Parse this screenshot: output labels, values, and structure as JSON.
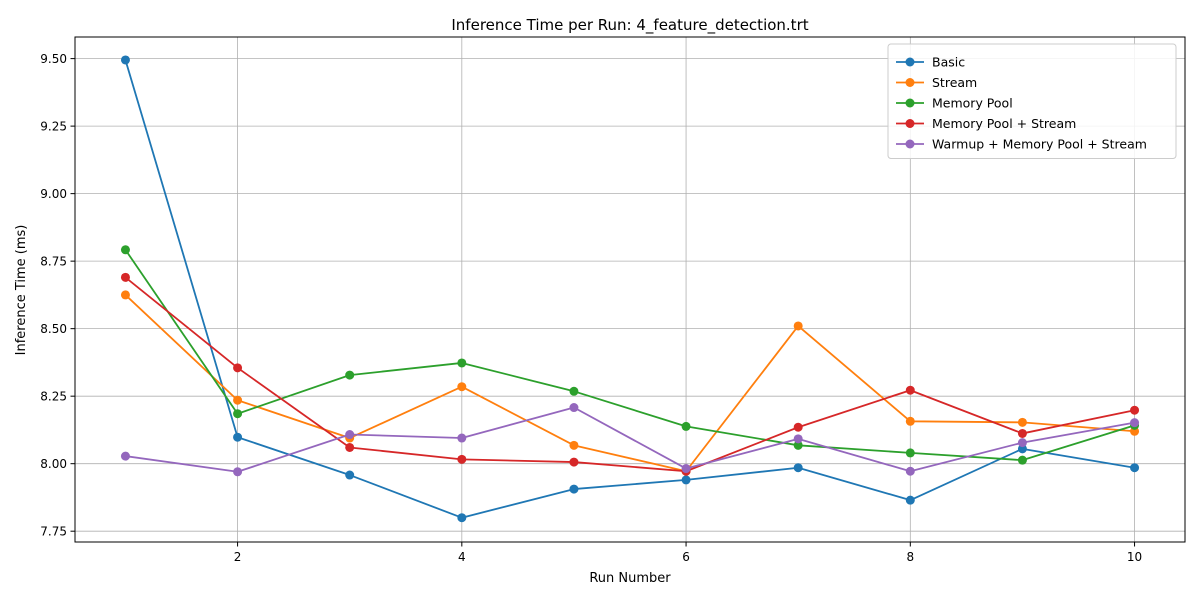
{
  "chart_data": {
    "type": "line",
    "title": "Inference Time per Run: 4_feature_detection.trt",
    "xlabel": "Run Number",
    "ylabel": "Inference Time (ms)",
    "x": [
      1,
      2,
      3,
      4,
      5,
      6,
      7,
      8,
      9,
      10
    ],
    "xlim": [
      0.55,
      10.45
    ],
    "ylim": [
      7.71,
      9.58
    ],
    "xticks": [
      2,
      4,
      6,
      8,
      10
    ],
    "xtick_labels": [
      "2",
      "4",
      "6",
      "8",
      "10"
    ],
    "yticks": [
      7.75,
      8.0,
      8.25,
      8.5,
      8.75,
      9.0,
      9.25,
      9.5
    ],
    "ytick_labels": [
      "7.75",
      "8.00",
      "8.25",
      "8.50",
      "8.75",
      "9.00",
      "9.25",
      "9.50"
    ],
    "grid": true,
    "legend_position": "top-right",
    "series": [
      {
        "name": "Basic",
        "color": "#1f77b4",
        "values": [
          9.495,
          8.098,
          7.958,
          7.8,
          7.906,
          7.94,
          7.985,
          7.865,
          8.055,
          7.985
        ]
      },
      {
        "name": "Stream",
        "color": "#ff7f0e",
        "values": [
          8.625,
          8.235,
          8.095,
          8.285,
          8.068,
          7.972,
          8.51,
          8.157,
          8.153,
          8.12
        ]
      },
      {
        "name": "Memory Pool",
        "color": "#2ca02c",
        "values": [
          8.792,
          8.185,
          8.328,
          8.373,
          8.268,
          8.138,
          8.068,
          8.04,
          8.013,
          8.142
        ]
      },
      {
        "name": "Memory Pool + Stream",
        "color": "#d62728",
        "values": [
          8.69,
          8.355,
          8.06,
          8.016,
          8.006,
          7.972,
          8.135,
          8.272,
          8.112,
          8.198
        ]
      },
      {
        "name": "Warmup + Memory Pool + Stream",
        "color": "#9467bd",
        "values": [
          8.028,
          7.97,
          8.108,
          8.095,
          8.208,
          7.982,
          8.092,
          7.972,
          8.078,
          8.152
        ]
      }
    ]
  }
}
